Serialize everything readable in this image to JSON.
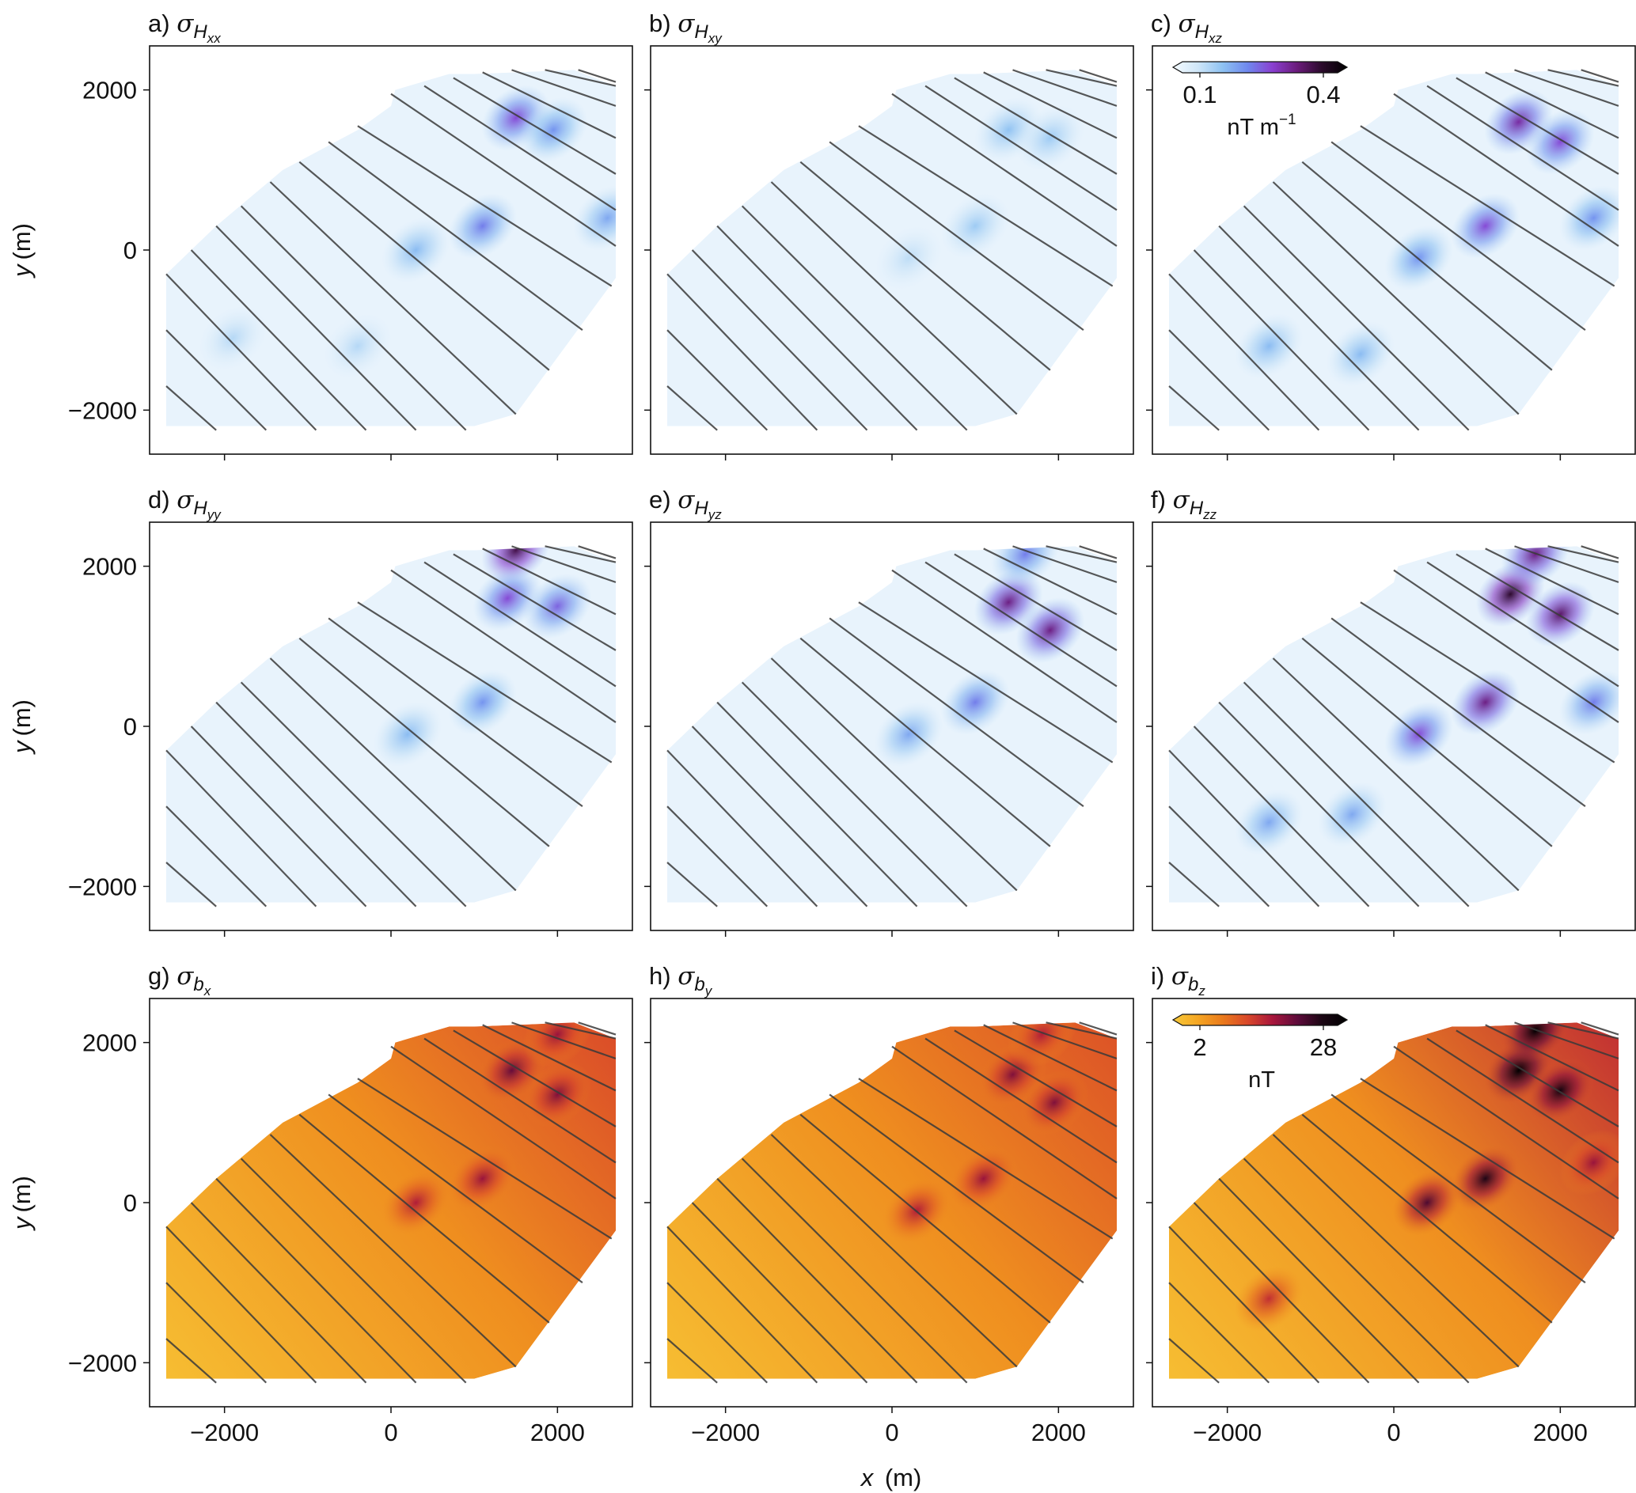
{
  "figure": {
    "shared_xlabel_var": "x",
    "shared_xlabel_unit": "(m)",
    "shared_ylabel_var": "y",
    "shared_ylabel_unit": "(m)"
  },
  "colorbars": [
    {
      "id": "tensor",
      "ticks": [
        "0.1",
        "0.4"
      ],
      "unit_main": "nT m",
      "unit_sup": "−1",
      "colors": [
        "#f5fbff",
        "#cfe6f8",
        "#8ec2f2",
        "#6f88ee",
        "#8a3fd0",
        "#6a1b7a",
        "#2a0a2a",
        "#000000"
      ]
    },
    {
      "id": "field",
      "ticks": [
        "2",
        "28"
      ],
      "unit_main": "nT",
      "unit_sup": "",
      "colors": [
        "#f7c93a",
        "#f5a623",
        "#ea7a1c",
        "#d9482a",
        "#a8163c",
        "#5e0b3b",
        "#1a0613",
        "#000000"
      ]
    }
  ],
  "chart_data": [
    {
      "type": "heatmap",
      "panel": "a)",
      "symbol": "σ",
      "sub_main": "H",
      "sub_sub": "xx",
      "colorbar": "tensor",
      "xlim": [
        -2900,
        2900
      ],
      "ylim": [
        -2550,
        2550
      ],
      "xticks": [
        -2000,
        0,
        2000
      ],
      "yticks": [
        -2000,
        0,
        2000
      ],
      "xticklabels": [
        "",
        "",
        ""
      ],
      "yticklabels": [
        "−2000",
        "0",
        "2000"
      ],
      "ylabel": true,
      "xlabel": false,
      "hotspots": [
        {
          "x": 1500,
          "y": 1650,
          "v": 0.55
        },
        {
          "x": 1950,
          "y": 1500,
          "v": 0.4
        },
        {
          "x": 1100,
          "y": 300,
          "v": 0.45
        },
        {
          "x": 300,
          "y": 0,
          "v": 0.3
        },
        {
          "x": 2600,
          "y": 400,
          "v": 0.35
        },
        {
          "x": -1900,
          "y": -1100,
          "v": 0.2
        },
        {
          "x": -400,
          "y": -1200,
          "v": 0.2
        }
      ]
    },
    {
      "type": "heatmap",
      "panel": "b)",
      "symbol": "σ",
      "sub_main": "H",
      "sub_sub": "xy",
      "colorbar": "tensor",
      "xlim": [
        -2900,
        2900
      ],
      "ylim": [
        -2550,
        2550
      ],
      "xticks": [
        -2000,
        0,
        2000
      ],
      "yticks": [
        -2000,
        0,
        2000
      ],
      "xticklabels": [
        "",
        "",
        ""
      ],
      "yticklabels": [
        "",
        "",
        ""
      ],
      "ylabel": false,
      "xlabel": false,
      "hotspots": [
        {
          "x": 1400,
          "y": 1500,
          "v": 0.28
        },
        {
          "x": 1900,
          "y": 1400,
          "v": 0.25
        },
        {
          "x": 1000,
          "y": 300,
          "v": 0.25
        },
        {
          "x": 200,
          "y": -100,
          "v": 0.18
        }
      ]
    },
    {
      "type": "heatmap",
      "panel": "c)",
      "symbol": "σ",
      "sub_main": "H",
      "sub_sub": "xz",
      "colorbar": "tensor",
      "show_colorbar": true,
      "xlim": [
        -2900,
        2900
      ],
      "ylim": [
        -2550,
        2550
      ],
      "xticks": [
        -2000,
        0,
        2000
      ],
      "yticks": [
        -2000,
        0,
        2000
      ],
      "xticklabels": [
        "",
        "",
        ""
      ],
      "yticklabels": [
        "",
        "",
        ""
      ],
      "ylabel": false,
      "xlabel": false,
      "hotspots": [
        {
          "x": 1500,
          "y": 1600,
          "v": 0.65
        },
        {
          "x": 2000,
          "y": 1350,
          "v": 0.55
        },
        {
          "x": 1100,
          "y": 300,
          "v": 0.55
        },
        {
          "x": 300,
          "y": -100,
          "v": 0.4
        },
        {
          "x": 2400,
          "y": 400,
          "v": 0.4
        },
        {
          "x": -1500,
          "y": -1200,
          "v": 0.3
        },
        {
          "x": -400,
          "y": -1300,
          "v": 0.3
        }
      ]
    },
    {
      "type": "heatmap",
      "panel": "d)",
      "symbol": "σ",
      "sub_main": "H",
      "sub_sub": "yy",
      "colorbar": "tensor",
      "xlim": [
        -2900,
        2900
      ],
      "ylim": [
        -2550,
        2550
      ],
      "xticks": [
        -2000,
        0,
        2000
      ],
      "yticks": [
        -2000,
        0,
        2000
      ],
      "xticklabels": [
        "",
        "",
        ""
      ],
      "yticklabels": [
        "−2000",
        "0",
        "2000"
      ],
      "ylabel": true,
      "xlabel": false,
      "hotspots": [
        {
          "x": 1400,
          "y": 1600,
          "v": 0.55
        },
        {
          "x": 2000,
          "y": 1500,
          "v": 0.5
        },
        {
          "x": 1100,
          "y": 300,
          "v": 0.4
        },
        {
          "x": 200,
          "y": -100,
          "v": 0.3
        },
        {
          "x": 1500,
          "y": 2200,
          "v": 0.8
        }
      ]
    },
    {
      "type": "heatmap",
      "panel": "e)",
      "symbol": "σ",
      "sub_main": "H",
      "sub_sub": "yz",
      "colorbar": "tensor",
      "xlim": [
        -2900,
        2900
      ],
      "ylim": [
        -2550,
        2550
      ],
      "xticks": [
        -2000,
        0,
        2000
      ],
      "yticks": [
        -2000,
        0,
        2000
      ],
      "xticklabels": [
        "",
        "",
        ""
      ],
      "yticklabels": [
        "",
        "",
        ""
      ],
      "ylabel": false,
      "xlabel": false,
      "hotspots": [
        {
          "x": 1400,
          "y": 1550,
          "v": 0.7
        },
        {
          "x": 1900,
          "y": 1200,
          "v": 0.7
        },
        {
          "x": 1000,
          "y": 300,
          "v": 0.45
        },
        {
          "x": 200,
          "y": -100,
          "v": 0.35
        },
        {
          "x": 1600,
          "y": 2150,
          "v": 0.45
        }
      ]
    },
    {
      "type": "heatmap",
      "panel": "f)",
      "symbol": "σ",
      "sub_main": "H",
      "sub_sub": "zz",
      "colorbar": "tensor",
      "xlim": [
        -2900,
        2900
      ],
      "ylim": [
        -2550,
        2550
      ],
      "xticks": [
        -2000,
        0,
        2000
      ],
      "yticks": [
        -2000,
        0,
        2000
      ],
      "xticklabels": [
        "",
        "",
        ""
      ],
      "yticklabels": [
        "",
        "",
        ""
      ],
      "ylabel": false,
      "xlabel": false,
      "hotspots": [
        {
          "x": 1400,
          "y": 1650,
          "v": 0.85
        },
        {
          "x": 2000,
          "y": 1400,
          "v": 0.75
        },
        {
          "x": 1100,
          "y": 300,
          "v": 0.7
        },
        {
          "x": 300,
          "y": -100,
          "v": 0.55
        },
        {
          "x": 1700,
          "y": 2150,
          "v": 0.7
        },
        {
          "x": 2400,
          "y": 300,
          "v": 0.45
        },
        {
          "x": -1500,
          "y": -1200,
          "v": 0.35
        },
        {
          "x": -500,
          "y": -1100,
          "v": 0.35
        }
      ]
    },
    {
      "type": "heatmap",
      "panel": "g)",
      "symbol": "σ",
      "sub_main": "b",
      "sub_sub": "x",
      "colorbar": "field",
      "xlim": [
        -2900,
        2900
      ],
      "ylim": [
        -2550,
        2550
      ],
      "xticks": [
        -2000,
        0,
        2000
      ],
      "yticks": [
        -2000,
        0,
        2000
      ],
      "xticklabels": [
        "−2000",
        "0",
        "2000"
      ],
      "yticklabels": [
        "−2000",
        "0",
        "2000"
      ],
      "ylabel": true,
      "xlabel": false,
      "base_gradient": 0.42,
      "hotspots": [
        {
          "x": 1450,
          "y": 1650,
          "v": 0.7
        },
        {
          "x": 2000,
          "y": 1350,
          "v": 0.65
        },
        {
          "x": 1100,
          "y": 300,
          "v": 0.6
        },
        {
          "x": 300,
          "y": 0,
          "v": 0.55
        },
        {
          "x": 2000,
          "y": 2100,
          "v": 0.6
        }
      ]
    },
    {
      "type": "heatmap",
      "panel": "h)",
      "symbol": "σ",
      "sub_main": "b",
      "sub_sub": "y",
      "colorbar": "field",
      "xlim": [
        -2900,
        2900
      ],
      "ylim": [
        -2550,
        2550
      ],
      "xticks": [
        -2000,
        0,
        2000
      ],
      "yticks": [
        -2000,
        0,
        2000
      ],
      "xticklabels": [
        "−2000",
        "0",
        "2000"
      ],
      "yticklabels": [
        "",
        "",
        ""
      ],
      "ylabel": false,
      "xlabel": true,
      "base_gradient": 0.4,
      "hotspots": [
        {
          "x": 1450,
          "y": 1600,
          "v": 0.65
        },
        {
          "x": 1950,
          "y": 1250,
          "v": 0.65
        },
        {
          "x": 1100,
          "y": 300,
          "v": 0.6
        },
        {
          "x": 300,
          "y": -100,
          "v": 0.55
        },
        {
          "x": 1800,
          "y": 2100,
          "v": 0.55
        }
      ]
    },
    {
      "type": "heatmap",
      "panel": "i)",
      "symbol": "σ",
      "sub_main": "b",
      "sub_sub": "z",
      "colorbar": "field",
      "show_colorbar": true,
      "xlim": [
        -2900,
        2900
      ],
      "ylim": [
        -2550,
        2550
      ],
      "xticks": [
        -2000,
        0,
        2000
      ],
      "yticks": [
        -2000,
        0,
        2000
      ],
      "xticklabels": [
        "−2000",
        "0",
        "2000"
      ],
      "yticklabels": [
        "",
        "",
        ""
      ],
      "ylabel": false,
      "xlabel": false,
      "base_gradient": 0.5,
      "hotspots": [
        {
          "x": 1500,
          "y": 1650,
          "v": 1.0
        },
        {
          "x": 2000,
          "y": 1400,
          "v": 0.9
        },
        {
          "x": 1700,
          "y": 2150,
          "v": 1.0
        },
        {
          "x": 1100,
          "y": 300,
          "v": 0.85
        },
        {
          "x": 400,
          "y": 0,
          "v": 0.75
        },
        {
          "x": 2400,
          "y": 500,
          "v": 0.6
        },
        {
          "x": -1500,
          "y": -1200,
          "v": 0.5
        }
      ]
    }
  ],
  "survey": {
    "outline": [
      [
        -2700,
        -2200
      ],
      [
        -2700,
        -300
      ],
      [
        -2100,
        300
      ],
      [
        -1300,
        1000
      ],
      [
        -400,
        1500
      ],
      [
        0,
        1800
      ],
      [
        50,
        2000
      ],
      [
        700,
        2200
      ],
      [
        1000,
        2200
      ],
      [
        2200,
        2250
      ],
      [
        2700,
        2050
      ],
      [
        2700,
        -350
      ],
      [
        1500,
        -2050
      ],
      [
        1000,
        -2200
      ],
      [
        -2700,
        -2200
      ]
    ],
    "flight_lines": [
      {
        "x0": -2700,
        "y0": -300,
        "x1": -900,
        "y1": -2250
      },
      {
        "x0": -2700,
        "y0": -1000,
        "x1": -1500,
        "y1": -2250
      },
      {
        "x0": -2700,
        "y0": -1700,
        "x1": -2100,
        "y1": -2250
      },
      {
        "x0": -2400,
        "y0": 0,
        "x1": -300,
        "y1": -2250
      },
      {
        "x0": -2100,
        "y0": 300,
        "x1": 300,
        "y1": -2250
      },
      {
        "x0": -1800,
        "y0": 550,
        "x1": 900,
        "y1": -2250
      },
      {
        "x0": -1450,
        "y0": 850,
        "x1": 1500,
        "y1": -2050
      },
      {
        "x0": -1100,
        "y0": 1100,
        "x1": 1900,
        "y1": -1500
      },
      {
        "x0": -750,
        "y0": 1350,
        "x1": 2300,
        "y1": -1000
      },
      {
        "x0": -400,
        "y0": 1550,
        "x1": 2650,
        "y1": -450
      },
      {
        "x0": 0,
        "y0": 1950,
        "x1": 2700,
        "y1": 50
      },
      {
        "x0": 400,
        "y0": 2050,
        "x1": 2700,
        "y1": 500
      },
      {
        "x0": 750,
        "y0": 2150,
        "x1": 2700,
        "y1": 950
      },
      {
        "x0": 1100,
        "y0": 2220,
        "x1": 2700,
        "y1": 1400
      },
      {
        "x0": 1450,
        "y0": 2250,
        "x1": 2700,
        "y1": 1800
      },
      {
        "x0": 1850,
        "y0": 2250,
        "x1": 2700,
        "y1": 2050
      },
      {
        "x0": 2250,
        "y0": 2250,
        "x1": 2700,
        "y1": 2100
      }
    ]
  }
}
